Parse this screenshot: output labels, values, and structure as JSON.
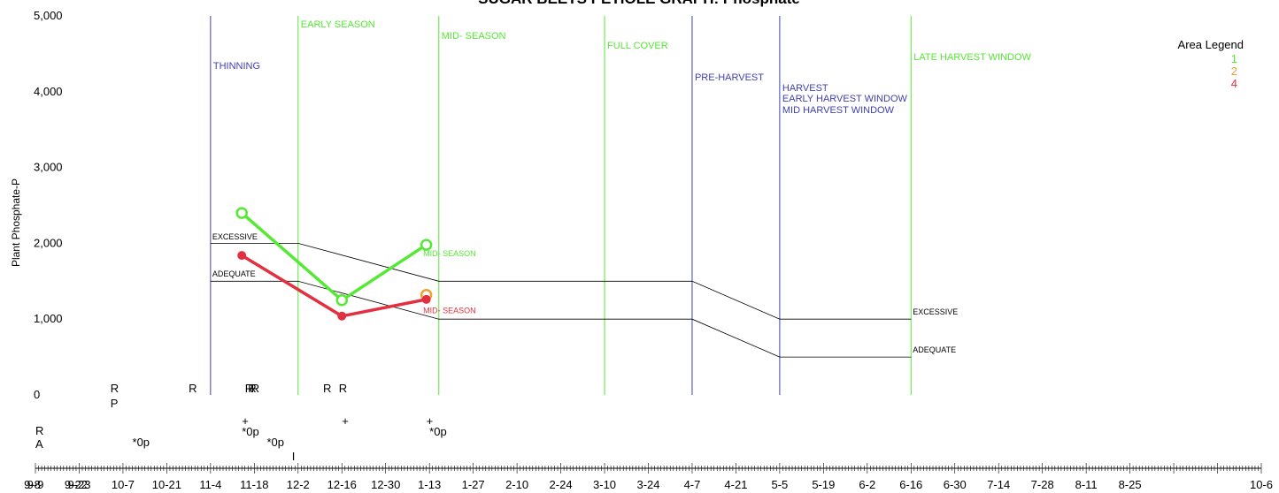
{
  "chart_data": {
    "type": "line",
    "title": "SUGAR BEETS PETIOLE GRAPH: Phosphate",
    "ylabel": "Plant Phosphate-P",
    "ylim": [
      0,
      5000
    ],
    "yticks": [
      0,
      1000,
      2000,
      3000,
      4000,
      5000
    ],
    "ytick_labels": [
      "0",
      "1,000",
      "2,000",
      "3,000",
      "4,000",
      "5,000"
    ],
    "xlim": [
      "9-9",
      "10-6"
    ],
    "xtick_labels": [
      "9-9",
      "9-23",
      "10-7",
      "10-21",
      "11-4",
      "11-18",
      "12-2",
      "12-16",
      "12-30",
      "1-13",
      "1-27",
      "2-10",
      "2-24",
      "3-10",
      "3-24",
      "4-7",
      "4-21",
      "5-5",
      "5-19",
      "6-2",
      "6-16",
      "6-30",
      "7-14",
      "7-28",
      "8-11",
      "8-25",
      "9-8",
      "9-22",
      "10-6"
    ],
    "legend": {
      "title": "Area Legend",
      "placement": "top-right",
      "entries": [
        "1",
        "2",
        "4"
      ]
    },
    "colors": {
      "area1": "#55e835",
      "area2": "#f0a030",
      "area4": "#e33040",
      "growth_stage": "#55e835",
      "harvest_stage": "#4040b0"
    },
    "stages": [
      {
        "label": "THINNING",
        "date": "11-4",
        "kind": "harvest_stage"
      },
      {
        "label": "EARLY SEASON",
        "date": "12-2",
        "kind": "growth_stage"
      },
      {
        "label": "MID- SEASON",
        "date": "1-16",
        "kind": "growth_stage"
      },
      {
        "label": "FULL COVER",
        "date": "3-10",
        "kind": "growth_stage"
      },
      {
        "label": "PRE-HARVEST",
        "date": "4-7",
        "kind": "harvest_stage"
      },
      {
        "label": "HARVEST",
        "date": "5-5",
        "kind": "harvest_stage"
      },
      {
        "label": "EARLY HARVEST WINDOW",
        "date": "5-5",
        "kind": "harvest_stage"
      },
      {
        "label": "MID HARVEST WINDOW",
        "date": "5-5",
        "kind": "harvest_stage"
      },
      {
        "label": "LATE HARVEST WINDOW",
        "date": "6-16",
        "kind": "growth_stage"
      }
    ],
    "reference_lines": [
      {
        "name": "EXCESSIVE",
        "x": [
          "11-4",
          "12-2",
          "1-16",
          "4-7",
          "5-5",
          "6-16"
        ],
        "y": [
          2000,
          2000,
          1500,
          1500,
          1000,
          1000
        ]
      },
      {
        "name": "ADEQUATE",
        "x": [
          "11-4",
          "12-2",
          "1-16",
          "4-7",
          "5-5",
          "6-16"
        ],
        "y": [
          1500,
          1500,
          1000,
          1000,
          500,
          500
        ]
      }
    ],
    "reference_labels": [
      {
        "text": "EXCESSIVE",
        "x": "11-4",
        "y": 2050
      },
      {
        "text": "ADEQUATE",
        "x": "11-4",
        "y": 1560
      },
      {
        "text": "EXCESSIVE",
        "x": "6-16",
        "y": 1060
      },
      {
        "text": "ADEQUATE",
        "x": "6-16",
        "y": 560
      }
    ],
    "series": [
      {
        "name": "1",
        "x": [
          "11-14",
          "12-16",
          "1-12"
        ],
        "y": [
          2400,
          1250,
          1980
        ]
      },
      {
        "name": "2",
        "x": [
          "1-12"
        ],
        "y": [
          1320
        ]
      },
      {
        "name": "4",
        "x": [
          "11-14",
          "12-16",
          "1-12"
        ],
        "y": [
          1840,
          1040,
          1260
        ]
      }
    ],
    "annotations": [
      {
        "text": "MID- SEASON",
        "x": "1-11",
        "y": 1830,
        "series": "1"
      },
      {
        "text": "MID- SEASON",
        "x": "1-11",
        "y": 1080,
        "series": "4"
      }
    ],
    "event_markers": [
      {
        "row": 1,
        "x": "10-3",
        "text": "R"
      },
      {
        "row": 2,
        "x": "10-3",
        "text": "P"
      },
      {
        "row": 1,
        "x": "10-28",
        "text": "R"
      },
      {
        "row": 1,
        "x": "11-15",
        "text": "R"
      },
      {
        "row": 1,
        "x": "11-16",
        "text": "R"
      },
      {
        "row": 1,
        "x": "11-17",
        "text": "R"
      },
      {
        "row": 1,
        "x": "12-10",
        "text": "R"
      },
      {
        "row": 1,
        "x": "12-15",
        "text": "R"
      },
      {
        "row": 3,
        "x": "11-14",
        "text": "+"
      },
      {
        "row": 3,
        "x": "12-16",
        "text": "+"
      },
      {
        "row": 3,
        "x": "1-12",
        "text": "+"
      },
      {
        "row": 4,
        "x": "11-14",
        "text": "*0p"
      },
      {
        "row": 4,
        "x": "1-13",
        "text": "*0p"
      },
      {
        "row": 5,
        "x": "9-9",
        "text": "R"
      },
      {
        "row": 5,
        "x": "10-10",
        "text": "*0p"
      },
      {
        "row": 5,
        "x": "11-22",
        "text": "*0p"
      },
      {
        "row": 6,
        "x": "9-9",
        "text": "A"
      },
      {
        "row": 7,
        "x": "11-30",
        "text": "I"
      }
    ]
  }
}
